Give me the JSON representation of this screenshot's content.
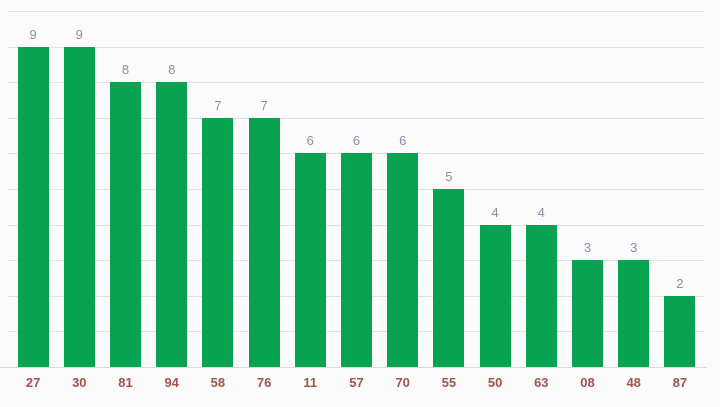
{
  "chart_data": {
    "type": "bar",
    "title": "",
    "xlabel": "",
    "ylabel": "",
    "categories": [
      "27",
      "30",
      "81",
      "94",
      "58",
      "76",
      "11",
      "57",
      "70",
      "55",
      "50",
      "63",
      "08",
      "48",
      "87"
    ],
    "values": [
      9,
      9,
      8,
      8,
      7,
      7,
      6,
      6,
      6,
      5,
      4,
      4,
      3,
      3,
      2
    ],
    "ylim": [
      0,
      10
    ],
    "grid": "horizontal unit gridlines, values 0-10",
    "legend": "none",
    "bar_color": "#07a351",
    "value_label_color": "#7e93a8",
    "category_label_color": "#a5544a",
    "gridline_color": "#e2e2e2",
    "baseline_color": "#d9d9d9",
    "background_color": "#fbfbfb"
  }
}
